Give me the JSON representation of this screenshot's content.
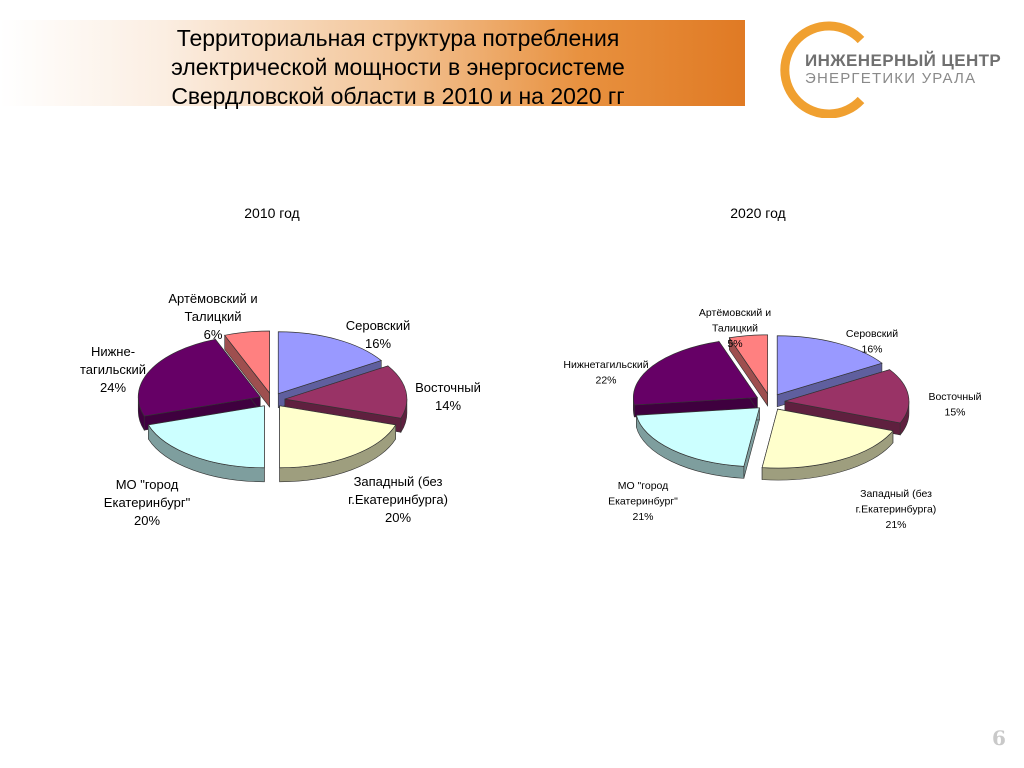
{
  "header": {
    "title_lines": [
      "Территориальная структура потребления",
      "электрической мощности в энергосистеме",
      "Свердловской области в 2010 и на 2020 гг"
    ]
  },
  "logo": {
    "line1": "ИНЖЕНЕРНЫЙ ЦЕНТР",
    "line2": "ЭНЕРГЕТИКИ   УРАЛА",
    "ring_color": "#f0a030"
  },
  "page_number": "6",
  "chart_data": [
    {
      "type": "pie",
      "title": "2010 год",
      "style": "3d-exploded",
      "slices": [
        {
          "name": "Серовский",
          "value": 16,
          "label_lines": [
            "Серовский",
            "16%"
          ],
          "color": "#9999ff"
        },
        {
          "name": "Восточный",
          "value": 14,
          "label_lines": [
            "Восточный",
            "14%"
          ],
          "color": "#993366"
        },
        {
          "name": "Западный (без г.Екатеринбурга)",
          "value": 20,
          "label_lines": [
            "Западный (без",
            "г.Екатеринбурга)",
            "20%"
          ],
          "color": "#ffffcc"
        },
        {
          "name": "МО \"город Екатеринбург\"",
          "value": 20,
          "label_lines": [
            "МО \"город",
            "Екатеринбург\"",
            "20%"
          ],
          "color": "#ccffff"
        },
        {
          "name": "Нижне-тагильский",
          "value": 24,
          "label_lines": [
            "Нижне-",
            "тагильский",
            "24%"
          ],
          "color": "#660066"
        },
        {
          "name": "Артёмовский и Талицкий",
          "value": 6,
          "label_lines": [
            "Артёмовский и",
            "Талицкий",
            "6%"
          ],
          "color": "#ff8080"
        }
      ]
    },
    {
      "type": "pie",
      "title": "2020 год",
      "style": "3d-exploded",
      "slices": [
        {
          "name": "Серовский",
          "value": 16,
          "label_lines": [
            "Серовский",
            "16%"
          ],
          "color": "#9999ff"
        },
        {
          "name": "Восточный",
          "value": 15,
          "label_lines": [
            "Восточный",
            "15%"
          ],
          "color": "#993366"
        },
        {
          "name": "Западный (без г.Екатеринбурга)",
          "value": 21,
          "label_lines": [
            "Западный (без",
            "г.Екатеринбурга)",
            "21%"
          ],
          "color": "#ffffcc"
        },
        {
          "name": "МО \"город Екатеринбург\"",
          "value": 21,
          "label_lines": [
            "МО \"город",
            "Екатеринбург\"",
            "21%"
          ],
          "color": "#ccffff"
        },
        {
          "name": "Нижнетагильский",
          "value": 22,
          "label_lines": [
            "Нижнетагильский",
            "22%"
          ],
          "color": "#660066"
        },
        {
          "name": "Артёмовский и Талицкий",
          "value": 5,
          "label_lines": [
            "Артёмовский и",
            "Талицкий",
            "5%"
          ],
          "color": "#ff8080"
        }
      ]
    }
  ]
}
